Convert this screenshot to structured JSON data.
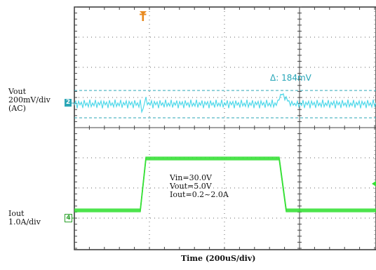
{
  "chart_data": {
    "type": "line",
    "title": "",
    "xlabel": "Time  (200uS/div)",
    "channels": [
      {
        "marker": "2",
        "label_lines": [
          "Vout",
          "200mV/div",
          "(AC)"
        ],
        "color": "#4fd8ea",
        "delta_text": "Δ:   184mV",
        "delta_mV": 184
      },
      {
        "marker": "4",
        "label_lines": [
          "Iout",
          "1.0A/div"
        ],
        "color": "#35e035"
      }
    ],
    "annotation_lines": [
      "Vin=30.0V",
      "Vout=5.0V",
      "Iout=0.2~2.0A"
    ],
    "trigger_marker": "T",
    "grid": true,
    "iout_A": {
      "low": 0.2,
      "high": 2.0,
      "rise_us": 200,
      "fall_us": 600
    }
  }
}
